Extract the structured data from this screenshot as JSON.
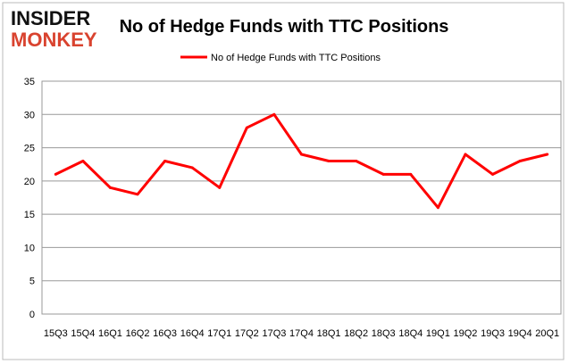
{
  "logo": {
    "line1": "INSIDER",
    "line2": "MONKEY"
  },
  "chart_data": {
    "type": "line",
    "title": "No of Hedge Funds with TTC Positions",
    "legend": {
      "entries": [
        "No of Hedge Funds with TTC Positions"
      ],
      "placement": "top"
    },
    "categories": [
      "15Q3",
      "15Q4",
      "16Q1",
      "16Q2",
      "16Q3",
      "16Q4",
      "17Q1",
      "17Q2",
      "17Q3",
      "17Q4",
      "18Q1",
      "18Q2",
      "18Q3",
      "18Q4",
      "19Q1",
      "19Q2",
      "19Q3",
      "19Q4",
      "20Q1"
    ],
    "series": [
      {
        "name": "No of Hedge Funds with TTC Positions",
        "color": "#ff0000",
        "values": [
          21,
          23,
          19,
          18,
          23,
          22,
          19,
          28,
          30,
          24,
          23,
          23,
          21,
          21,
          16,
          24,
          21,
          23,
          24
        ]
      }
    ],
    "ylim": [
      0,
      35
    ],
    "yticks": [
      0,
      5,
      10,
      15,
      20,
      25,
      30,
      35
    ],
    "grid": true,
    "xlabel": "",
    "ylabel": ""
  }
}
